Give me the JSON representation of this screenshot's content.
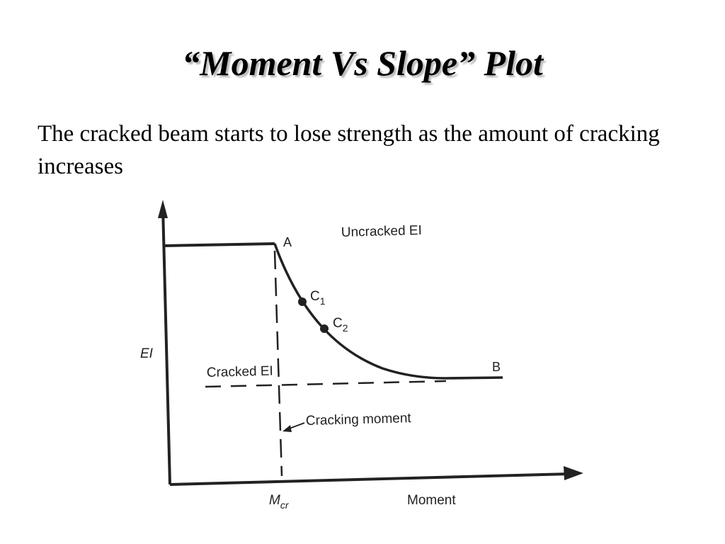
{
  "slide": {
    "title": "“Moment Vs Slope” Plot",
    "body": "The cracked beam starts to lose strength as the amount of cracking increases"
  },
  "diagram": {
    "y_axis_label": "EI",
    "x_axis_label": "Moment",
    "uncracked_label": "Uncracked EI",
    "cracked_label": "Cracked EI",
    "cracking_moment_label": "Cracking moment",
    "mcr_label": "Mcr",
    "points": {
      "a": "A",
      "b": "B",
      "c1": "C1",
      "c2": "C2"
    },
    "colors": {
      "ink": "#222222"
    }
  }
}
